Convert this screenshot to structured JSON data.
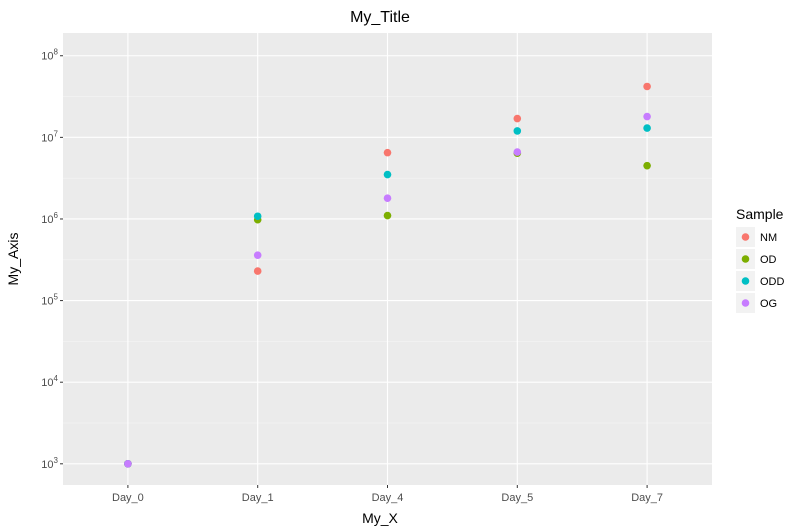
{
  "chart_data": {
    "type": "scatter",
    "title": "My_Title",
    "xlabel": "My_X",
    "ylabel": "My_Axis",
    "categories": [
      "Day_0",
      "Day_1",
      "Day_4",
      "Day_5",
      "Day_7"
    ],
    "y_scale": "log10",
    "ylim": [
      550,
      190000000
    ],
    "y_ticks": [
      {
        "value": 1000,
        "base": "10",
        "exp": "3"
      },
      {
        "value": 10000,
        "base": "10",
        "exp": "4"
      },
      {
        "value": 100000,
        "base": "10",
        "exp": "5"
      },
      {
        "value": 1000000,
        "base": "10",
        "exp": "6"
      },
      {
        "value": 10000000,
        "base": "10",
        "exp": "7"
      },
      {
        "value": 100000000,
        "base": "10",
        "exp": "8"
      }
    ],
    "grid": true,
    "legend": {
      "title": "Sample",
      "position": "right"
    },
    "series": [
      {
        "name": "NM",
        "color": "#F8766D",
        "values": [
          1000,
          230000,
          6500000,
          17000000,
          42000000
        ]
      },
      {
        "name": "OD",
        "color": "#7CAE00",
        "values": [
          1000,
          980000,
          1100000,
          6400000,
          4500000
        ]
      },
      {
        "name": "ODD",
        "color": "#00BFC4",
        "values": [
          1000,
          1080000,
          3500000,
          12000000,
          13000000
        ]
      },
      {
        "name": "OG",
        "color": "#C77CFF",
        "values": [
          1000,
          360000,
          1800000,
          6600000,
          18000000
        ]
      }
    ]
  }
}
